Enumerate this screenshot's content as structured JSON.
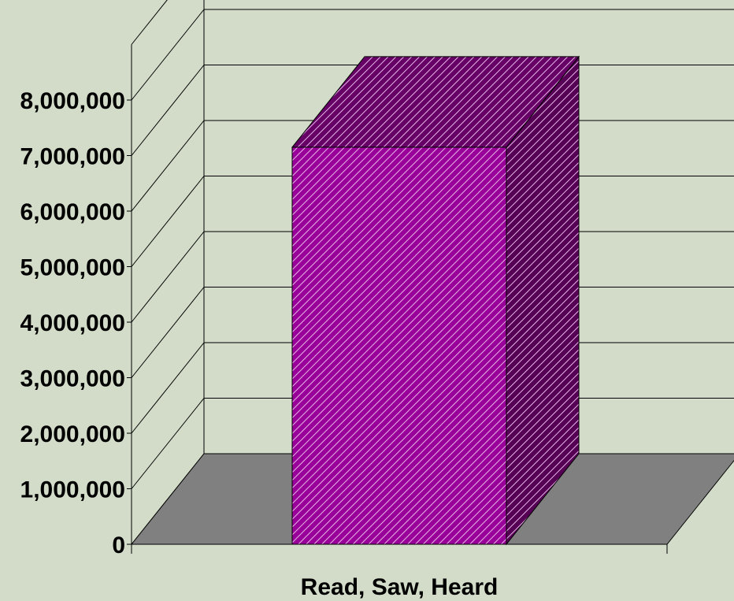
{
  "chart_data": {
    "type": "bar",
    "style": "3d",
    "categories": [
      "Read, Saw, Heard"
    ],
    "values": [
      7150000
    ],
    "ylim": [
      0,
      8000000
    ],
    "yticks": [
      0,
      1000000,
      2000000,
      3000000,
      4000000,
      5000000,
      6000000,
      7000000,
      8000000
    ],
    "ytick_labels": [
      "0",
      "1,000,000",
      "2,000,000",
      "3,000,000",
      "4,000,000",
      "5,000,000",
      "6,000,000",
      "7,000,000",
      "8,000,000"
    ],
    "grid": true,
    "legend": "none",
    "colors": {
      "background": "#d2dcc8",
      "floor": "#808080",
      "bar_front": "#990099",
      "bar_top": "#660066",
      "bar_side": "#550055",
      "bar_hatch": "#e6b8e6",
      "grid": "#000000"
    }
  }
}
